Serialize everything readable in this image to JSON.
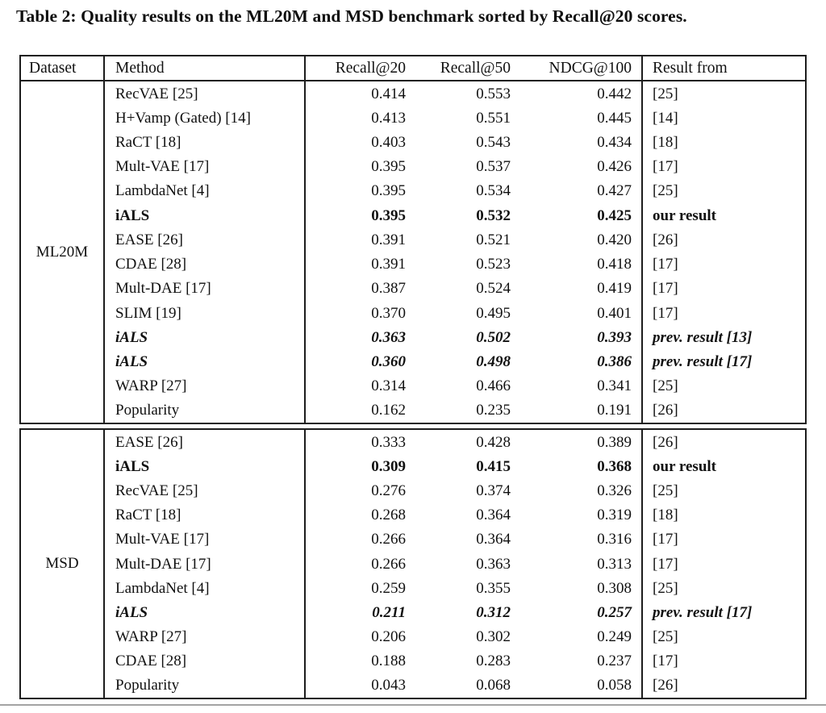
{
  "caption": "Table 2: Quality results on the ML20M and MSD benchmark sorted by Recall@20 scores.",
  "table": {
    "columns": {
      "dataset": "Dataset",
      "method": "Method",
      "recall20": "Recall@20",
      "recall50": "Recall@50",
      "ndcg100": "NDCG@100",
      "result_from": "Result from"
    },
    "sections": [
      {
        "dataset": "ML20M",
        "rows": [
          {
            "method": "RecVAE [25]",
            "recall20": "0.414",
            "recall50": "0.553",
            "ndcg100": "0.442",
            "result_from": "[25]",
            "style": "normal"
          },
          {
            "method": "H+Vamp (Gated) [14]",
            "recall20": "0.413",
            "recall50": "0.551",
            "ndcg100": "0.445",
            "result_from": "[14]",
            "style": "normal"
          },
          {
            "method": "RaCT [18]",
            "recall20": "0.403",
            "recall50": "0.543",
            "ndcg100": "0.434",
            "result_from": "[18]",
            "style": "normal"
          },
          {
            "method": "Mult-VAE [17]",
            "recall20": "0.395",
            "recall50": "0.537",
            "ndcg100": "0.426",
            "result_from": "[17]",
            "style": "normal"
          },
          {
            "method": "LambdaNet [4]",
            "recall20": "0.395",
            "recall50": "0.534",
            "ndcg100": "0.427",
            "result_from": "[25]",
            "style": "normal"
          },
          {
            "method": "iALS",
            "recall20": "0.395",
            "recall50": "0.532",
            "ndcg100": "0.425",
            "result_from": "our result",
            "style": "bold"
          },
          {
            "method": "EASE [26]",
            "recall20": "0.391",
            "recall50": "0.521",
            "ndcg100": "0.420",
            "result_from": "[26]",
            "style": "normal"
          },
          {
            "method": "CDAE [28]",
            "recall20": "0.391",
            "recall50": "0.523",
            "ndcg100": "0.418",
            "result_from": "[17]",
            "style": "normal"
          },
          {
            "method": "Mult-DAE [17]",
            "recall20": "0.387",
            "recall50": "0.524",
            "ndcg100": "0.419",
            "result_from": "[17]",
            "style": "normal"
          },
          {
            "method": "SLIM [19]",
            "recall20": "0.370",
            "recall50": "0.495",
            "ndcg100": "0.401",
            "result_from": "[17]",
            "style": "normal"
          },
          {
            "method": "iALS",
            "recall20": "0.363",
            "recall50": "0.502",
            "ndcg100": "0.393",
            "result_from": "prev. result [13]",
            "style": "bolditalic"
          },
          {
            "method": "iALS",
            "recall20": "0.360",
            "recall50": "0.498",
            "ndcg100": "0.386",
            "result_from": "prev. result [17]",
            "style": "bolditalic"
          },
          {
            "method": "WARP [27]",
            "recall20": "0.314",
            "recall50": "0.466",
            "ndcg100": "0.341",
            "result_from": "[25]",
            "style": "normal"
          },
          {
            "method": "Popularity",
            "recall20": "0.162",
            "recall50": "0.235",
            "ndcg100": "0.191",
            "result_from": "[26]",
            "style": "normal"
          }
        ]
      },
      {
        "dataset": "MSD",
        "rows": [
          {
            "method": "EASE [26]",
            "recall20": "0.333",
            "recall50": "0.428",
            "ndcg100": "0.389",
            "result_from": "[26]",
            "style": "normal"
          },
          {
            "method": "iALS",
            "recall20": "0.309",
            "recall50": "0.415",
            "ndcg100": "0.368",
            "result_from": "our result",
            "style": "bold"
          },
          {
            "method": "RecVAE [25]",
            "recall20": "0.276",
            "recall50": "0.374",
            "ndcg100": "0.326",
            "result_from": "[25]",
            "style": "normal"
          },
          {
            "method": "RaCT [18]",
            "recall20": "0.268",
            "recall50": "0.364",
            "ndcg100": "0.319",
            "result_from": "[18]",
            "style": "normal"
          },
          {
            "method": "Mult-VAE [17]",
            "recall20": "0.266",
            "recall50": "0.364",
            "ndcg100": "0.316",
            "result_from": "[17]",
            "style": "normal"
          },
          {
            "method": "Mult-DAE [17]",
            "recall20": "0.266",
            "recall50": "0.363",
            "ndcg100": "0.313",
            "result_from": "[17]",
            "style": "normal"
          },
          {
            "method": "LambdaNet [4]",
            "recall20": "0.259",
            "recall50": "0.355",
            "ndcg100": "0.308",
            "result_from": "[25]",
            "style": "normal"
          },
          {
            "method": "iALS",
            "recall20": "0.211",
            "recall50": "0.312",
            "ndcg100": "0.257",
            "result_from": "prev. result [17]",
            "style": "bolditalic"
          },
          {
            "method": "WARP [27]",
            "recall20": "0.206",
            "recall50": "0.302",
            "ndcg100": "0.249",
            "result_from": "[25]",
            "style": "normal"
          },
          {
            "method": "CDAE [28]",
            "recall20": "0.188",
            "recall50": "0.283",
            "ndcg100": "0.237",
            "result_from": "[17]",
            "style": "normal"
          },
          {
            "method": "Popularity",
            "recall20": "0.043",
            "recall50": "0.068",
            "ndcg100": "0.058",
            "result_from": "[26]",
            "style": "normal"
          }
        ]
      }
    ]
  }
}
